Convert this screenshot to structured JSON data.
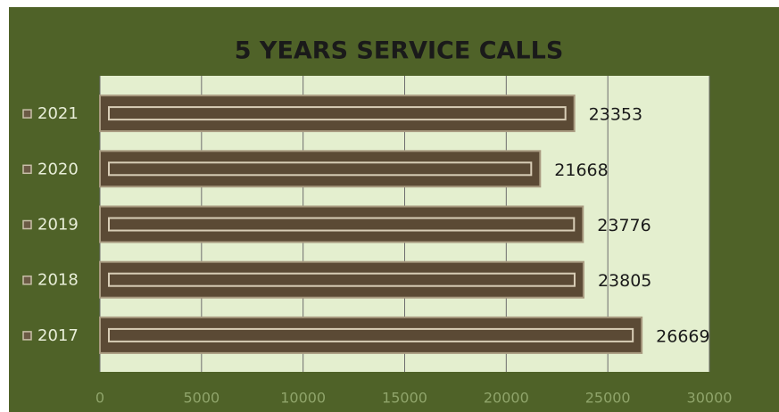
{
  "chart_data": {
    "type": "bar",
    "orientation": "horizontal",
    "title": "5 YEARS SERVICE CALLS",
    "categories": [
      "2021",
      "2020",
      "2019",
      "2018",
      "2017"
    ],
    "values": [
      23353,
      21668,
      23776,
      23805,
      26669
    ],
    "color": "#5b4a35",
    "xlim": [
      0,
      30000
    ],
    "xticks": [
      0,
      5000,
      10000,
      15000,
      20000,
      25000,
      30000
    ],
    "grid": true
  }
}
